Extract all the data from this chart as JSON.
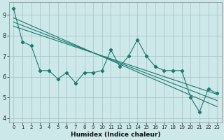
{
  "xlabel": "Humidex (Indice chaleur)",
  "background_color": "#cce8e8",
  "grid_color": "#aac8c8",
  "line_color": "#1a7a6e",
  "xlim": [
    -0.5,
    23.5
  ],
  "ylim": [
    3.8,
    9.6
  ],
  "yticks": [
    4,
    5,
    6,
    7,
    8,
    9
  ],
  "xticks": [
    0,
    1,
    2,
    3,
    4,
    5,
    6,
    7,
    8,
    9,
    10,
    11,
    12,
    13,
    14,
    15,
    16,
    17,
    18,
    19,
    20,
    21,
    22,
    23
  ],
  "jagged": [
    9.3,
    7.7,
    7.5,
    6.3,
    6.3,
    5.9,
    6.2,
    5.7,
    6.2,
    6.2,
    6.3,
    7.3,
    6.5,
    7.0,
    7.8,
    7.0,
    6.5,
    6.3,
    6.3,
    6.3,
    5.0,
    4.3,
    5.4,
    5.2
  ],
  "trend1_x": [
    0,
    23
  ],
  "trend1_y": [
    8.85,
    4.55
  ],
  "trend2_x": [
    0,
    23
  ],
  "trend2_y": [
    8.65,
    4.85
  ],
  "trend3_x": [
    0,
    23
  ],
  "trend3_y": [
    8.45,
    5.15
  ]
}
